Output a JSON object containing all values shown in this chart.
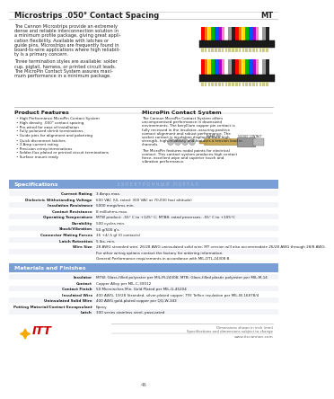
{
  "title_left": "Microstrips .050° Contact Spacing",
  "title_right": "MT",
  "bg_color": "#ffffff",
  "text_color": "#222222",
  "gray_text": "#666666",
  "intro_lines": [
    "The Cannon Microstrips provide an extremely",
    "dense and reliable interconnection solution in",
    "a minimum profile package, giving great appli-",
    "cation flexibility. Available with latches or",
    "guide pins, Microstrips are frequently found in",
    "board-to-wire applications where high reliabili-",
    "ty is a primary concern.",
    "",
    "Three termination styles are available: solder",
    "cup, pigtail, harness, or printed circuit leads.",
    "The MicroPin Contact System assures maxi-",
    "mum performance in a minimum package."
  ],
  "product_features_title": "Product Features",
  "product_features": [
    "High Performance MicroPin Contact System",
    "High density .050\" contact spacing",
    "Pre-wired for ease of installation",
    "Fully polarized shrink terminations",
    "Guide pins for alignment and polarizing",
    "Quick disconnect latches",
    "3 Amp current rating",
    "Precision crimp terminations",
    "Solder-flux plated or printed circuit terminations",
    "Surface mount ready"
  ],
  "micropin_title": "MicroPin Contact System",
  "micropin_lines": [
    "The Cannon MicroPin Contact System offers",
    "uncompromised performance in downsized",
    "environments. The beryllium copper pin contact is",
    "fully recessed in the insulator, assuring positive",
    "contact alignment and robust performance. The",
    "socket contact is insulation displaced from high",
    "strength, high-reliability and features a tension load in",
    "channels.",
    "",
    "The MicroPin features nodal points for electrical",
    "contact. This contact system produces high contact",
    "force, excellent wipe and superior touch and",
    "vibration performance."
  ],
  "spec_title": "Specifications",
  "spec_header_color": "#7a9fd4",
  "spec_label_col": 95,
  "specifications": [
    [
      "Current Rating",
      "3 Amps max."
    ],
    [
      "Dielectric Withstanding Voltage",
      "600 VAC (UL rated: 300 VAC at 70,000 foot altitude)"
    ],
    [
      "Insulation Resistance",
      "5000 megohms min."
    ],
    [
      "Contact Resistance",
      "8 milliohms max."
    ],
    [
      "Operating Temperature",
      "MTW product: -55° C to +125° C; MTB8: rated processes: -55° C to +105°C"
    ],
    [
      "Durability",
      "500 cycles min."
    ],
    [
      "Shock/Vibration",
      "50 g/500 g's"
    ],
    [
      "Connector Mating Forces",
      "35 +4/-5 gf (0 contacts)"
    ],
    [
      "Latch Retention",
      "5 lbs. min."
    ],
    [
      "Wire Size",
      "28 AWG stranded wire; 26/28 AWG uninsulated solid wire; MT version will also accommodate 26/28 AWG through 28/8 AWG."
    ],
    [
      "",
      "For other wiring options contact the factory for ordering information."
    ],
    [
      "",
      "General Performance requirements in accordance with MIL-DTL-24308 B."
    ]
  ],
  "materials_title": "Materials and Finishes",
  "mat_label_col": 95,
  "materials": [
    [
      "Insulator",
      "MTW: Glass-filled polyester per MIL-M-24308; MTB: Glass-filled plastic polyester per MIL-M-14"
    ],
    [
      "Contact",
      "Copper Alloy per MIL-C-39012"
    ],
    [
      "Contact Finish",
      "50 Microinches Min. Gold Plated per MIL-G-45204"
    ],
    [
      "Insulated Wire",
      "400 AWG, 19/28 Stranded, silver-plated copper; TFE Teflon insulation per MIL-W-16878/4"
    ],
    [
      "Uninsulated Solid Wire",
      "400 AWG gold-plated copper per QQ-W-343"
    ],
    [
      "Potting Material/Contact Encapsulant",
      "Epoxy"
    ],
    [
      "Latch",
      "300 series stainless steel, passivated"
    ]
  ],
  "footer_line1": "Dimensions shown in inch (mm)",
  "footer_line2": "Specifications and dimensions subject to change",
  "footer_line3": "www.itccannon.com",
  "page_number": "46",
  "ribbon_colors": [
    "#ff0000",
    "#ff7700",
    "#ffdd00",
    "#00bb00",
    "#0055ff",
    "#aa00cc",
    "#ff88bb",
    "#ffffff",
    "#999999",
    "#222222",
    "#ff0000",
    "#ff7700",
    "#ffdd00",
    "#00bb00",
    "#0055ff",
    "#aa00cc",
    "#ff88bb",
    "#ffffff",
    "#999999",
    "#222222"
  ]
}
